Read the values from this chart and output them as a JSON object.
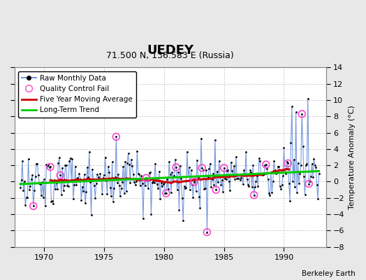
{
  "title": "UEDEY",
  "subtitle": "71.500 N, 136.583 E (Russia)",
  "ylabel": "Temperature Anomaly (°C)",
  "credit": "Berkeley Earth",
  "xlim": [
    1967.5,
    1993.5
  ],
  "ylim": [
    -8,
    14
  ],
  "yticks": [
    -8,
    -6,
    -4,
    -2,
    0,
    2,
    4,
    6,
    8,
    10,
    12,
    14
  ],
  "xticks": [
    1970,
    1975,
    1980,
    1985,
    1990
  ],
  "outer_bg_color": "#e8e8e8",
  "plot_bg_color": "#ffffff",
  "raw_line_color": "#7799dd",
  "raw_dot_color": "#000000",
  "qc_color": "#ff44cc",
  "moving_avg_color": "#cc0000",
  "trend_color": "#00cc00",
  "grid_color": "#cccccc",
  "title_fontsize": 13,
  "subtitle_fontsize": 9,
  "tick_fontsize": 8,
  "ylabel_fontsize": 8,
  "legend_fontsize": 7.5,
  "credit_fontsize": 7.5
}
